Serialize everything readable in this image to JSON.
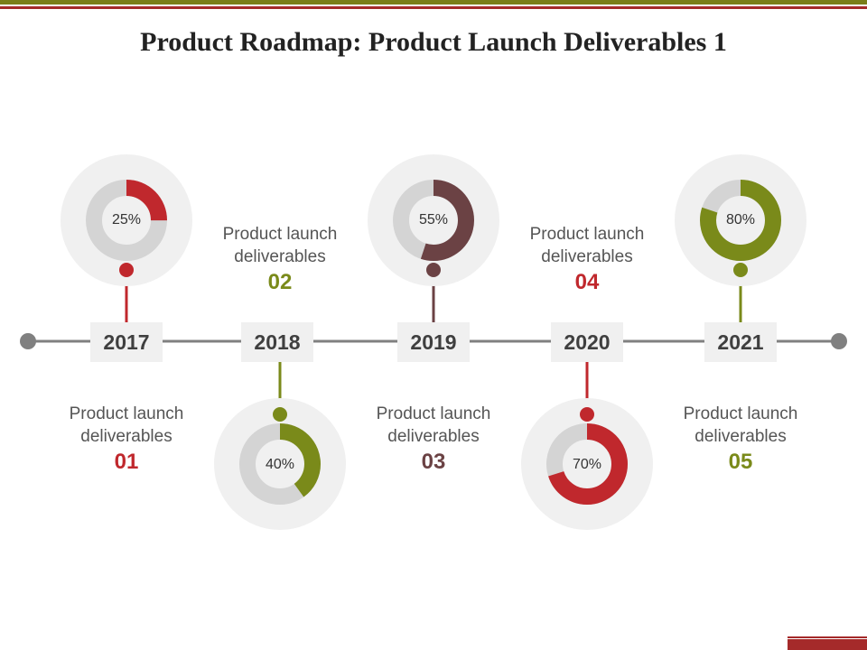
{
  "title": "Product Roadmap: Product Launch Deliverables 1",
  "colors": {
    "red": "#c0282d",
    "olive": "#7a8a1a",
    "brown": "#6b4244",
    "dark_grey": "#808080",
    "ring_track": "#d4d4d4",
    "ring_outer": "#f0f0f0",
    "top_olive": "#7a7e19",
    "top_red": "#a52a2a"
  },
  "milestones": [
    {
      "year": "2017",
      "percent_label": "25%",
      "percent": 25,
      "color": "red",
      "label_line1": "Product launch",
      "label_line2": "deliverables",
      "number": "01"
    },
    {
      "year": "2018",
      "percent_label": "40%",
      "percent": 40,
      "color": "olive",
      "label_line1": "Product launch",
      "label_line2": "deliverables",
      "number": "02"
    },
    {
      "year": "2019",
      "percent_label": "55%",
      "percent": 55,
      "color": "brown",
      "label_line1": "Product launch",
      "label_line2": "deliverables",
      "number": "03"
    },
    {
      "year": "2020",
      "percent_label": "70%",
      "percent": 70,
      "color": "red",
      "label_line1": "Product launch",
      "label_line2": "deliverables",
      "number": "04"
    },
    {
      "year": "2021",
      "percent_label": "80%",
      "percent": 80,
      "color": "olive",
      "label_line1": "Product launch",
      "label_line2": "deliverables",
      "number": "05"
    }
  ]
}
